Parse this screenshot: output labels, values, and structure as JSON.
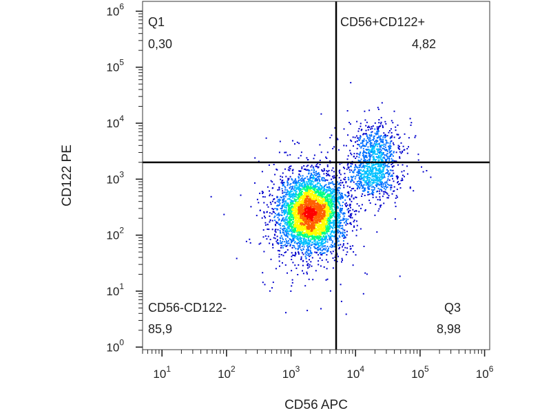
{
  "chart_data": {
    "type": "scatter",
    "title": "",
    "xlabel": "CD56 APC",
    "ylabel": "CD122 PE",
    "x_scale": "log",
    "y_scale": "log",
    "xlim": [
      5,
      1200000
    ],
    "ylim": [
      0.9,
      1500000
    ],
    "x_ticks": [
      {
        "base": "10",
        "exp": "1",
        "value": 10
      },
      {
        "base": "10",
        "exp": "2",
        "value": 100
      },
      {
        "base": "10",
        "exp": "3",
        "value": 1000
      },
      {
        "base": "10",
        "exp": "4",
        "value": 10000
      },
      {
        "base": "10",
        "exp": "5",
        "value": 100000
      },
      {
        "base": "10",
        "exp": "6",
        "value": 1000000
      }
    ],
    "y_ticks": [
      {
        "base": "10",
        "exp": "0",
        "value": 1
      },
      {
        "base": "10",
        "exp": "1",
        "value": 10
      },
      {
        "base": "10",
        "exp": "2",
        "value": 100
      },
      {
        "base": "10",
        "exp": "3",
        "value": 1000
      },
      {
        "base": "10",
        "exp": "4",
        "value": 10000
      },
      {
        "base": "10",
        "exp": "5",
        "value": 100000
      },
      {
        "base": "10",
        "exp": "6",
        "value": 1000000
      }
    ],
    "gate": {
      "x": 5000,
      "y": 2000
    },
    "quadrants": [
      {
        "id": "q-upper-left",
        "name": "Q1",
        "value": "0,30"
      },
      {
        "id": "q-upper-right",
        "name": "CD56+CD122+",
        "value": "4,82"
      },
      {
        "id": "q-lower-left",
        "name": "CD56-CD122-",
        "value": "85,9"
      },
      {
        "id": "q-lower-right",
        "name": "Q3",
        "value": "8,98"
      }
    ],
    "populations": [
      {
        "name": "",
        "cx": 2000,
        "cy": 250,
        "sx_decades": 0.24,
        "sy_decades": 0.33,
        "count": 4200
      },
      {
        "name": "",
        "cx": 18000,
        "cy": 1200,
        "sx_decades": 0.2,
        "sy_decades": 0.2,
        "count": 650
      },
      {
        "name": "",
        "cx": 20000,
        "cy": 4000,
        "sx_decades": 0.17,
        "sy_decades": 0.2,
        "count": 450
      }
    ],
    "density_colors": [
      "#0000cc",
      "#0070ff",
      "#00c0ff",
      "#00ff80",
      "#ffff00",
      "#ff6000",
      "#ff0000"
    ],
    "grid": false,
    "legend": "none"
  }
}
